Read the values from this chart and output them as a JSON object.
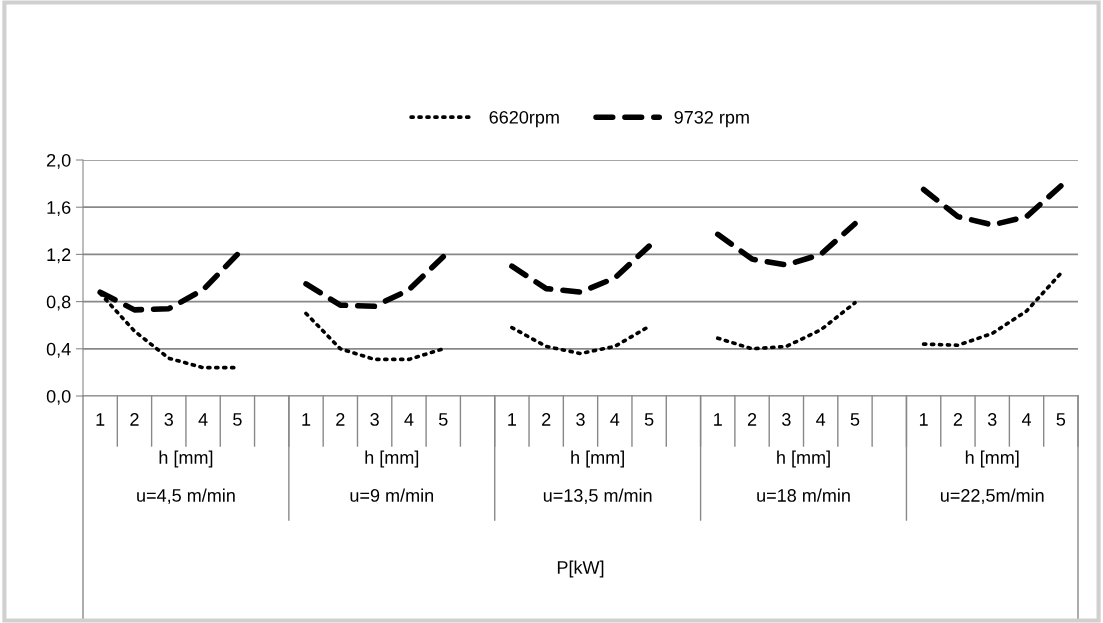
{
  "chart_data": {
    "type": "line",
    "categories": [
      "1",
      "2",
      "3",
      "4",
      "5",
      null,
      "1",
      "2",
      "3",
      "4",
      "5",
      null,
      "1",
      "2",
      "3",
      "4",
      "5",
      null,
      "1",
      "2",
      "3",
      "4",
      "5",
      null,
      "1",
      "2",
      "3",
      "4",
      "5"
    ],
    "series": [
      {
        "name": "6620rpm",
        "color": "#000000",
        "line_style": "dotted",
        "values": [
          0.87,
          0.55,
          0.32,
          0.24,
          0.24,
          null,
          0.7,
          0.4,
          0.31,
          0.31,
          0.4,
          null,
          0.58,
          0.42,
          0.36,
          0.42,
          0.59,
          null,
          0.49,
          0.4,
          0.42,
          0.56,
          0.79,
          null,
          0.44,
          0.43,
          0.53,
          0.72,
          1.04
        ]
      },
      {
        "name": "9732 rpm",
        "color": "#000000",
        "line_style": "dashed",
        "values": [
          0.88,
          0.73,
          0.74,
          0.9,
          1.2,
          null,
          0.95,
          0.77,
          0.76,
          0.9,
          1.18,
          null,
          1.1,
          0.91,
          0.88,
          1.0,
          1.27,
          null,
          1.37,
          1.16,
          1.11,
          1.2,
          1.46,
          null,
          1.75,
          1.52,
          1.45,
          1.52,
          1.78
        ]
      }
    ],
    "ylim": [
      0,
      2.0
    ],
    "yticks": [
      {
        "value": 0,
        "label": "0,0"
      },
      {
        "value": 0.4,
        "label": "0,4"
      },
      {
        "value": 0.8,
        "label": "0,8"
      },
      {
        "value": 1.2,
        "label": "1,2"
      },
      {
        "value": 1.6,
        "label": "1,6"
      },
      {
        "value": 2.0,
        "label": "2,0"
      }
    ],
    "annotations": [
      "h [mm]",
      "u=4,5 m/min",
      "h [mm]",
      "u=9 m/min",
      "h [mm]",
      "u=13,5 m/min",
      "h [mm]",
      "u=18 m/min",
      "h [mm]",
      "u=22,5m/min",
      "P[kW]"
    ],
    "grid": "y",
    "legend": "top",
    "marker": "none"
  }
}
